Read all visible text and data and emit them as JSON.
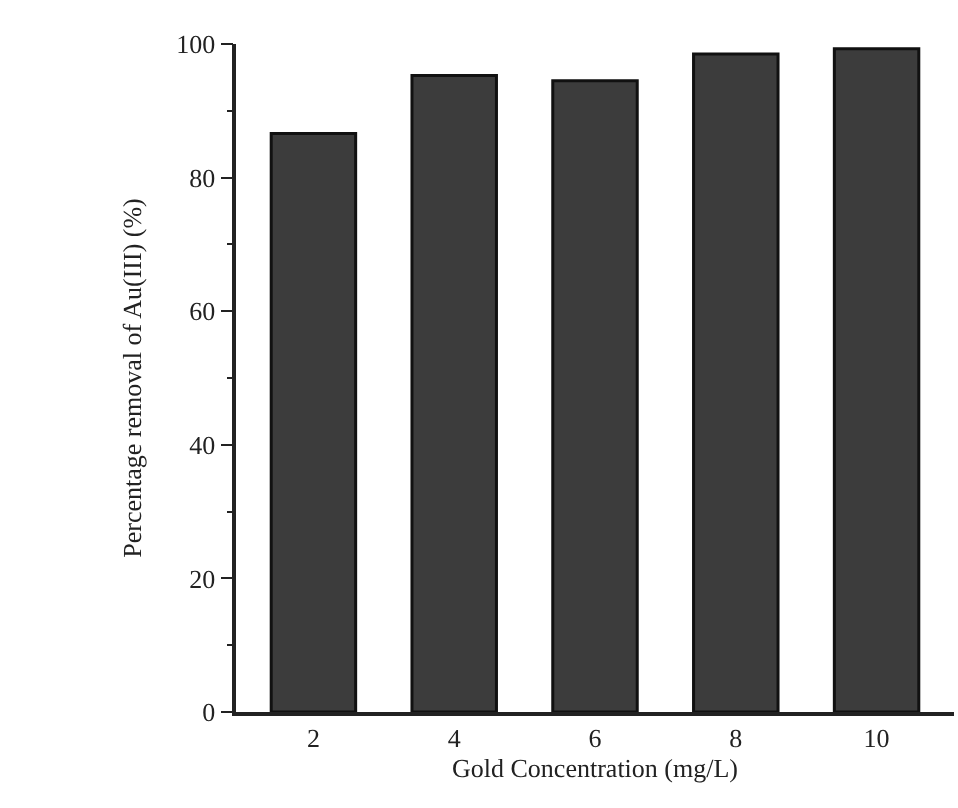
{
  "chart_data": {
    "type": "bar",
    "xlabel": "Gold Concentration (mg/L)",
    "ylabel": "Percentage removal of Au(III) (%)",
    "categories": [
      "2",
      "4",
      "6",
      "8",
      "10"
    ],
    "values": [
      86.6,
      95.3,
      94.5,
      98.5,
      99.3
    ],
    "color": "#3c3c3c",
    "ylim": [
      0,
      100
    ],
    "yticks": [
      0,
      20,
      40,
      60,
      80,
      100
    ],
    "grid": false
  }
}
